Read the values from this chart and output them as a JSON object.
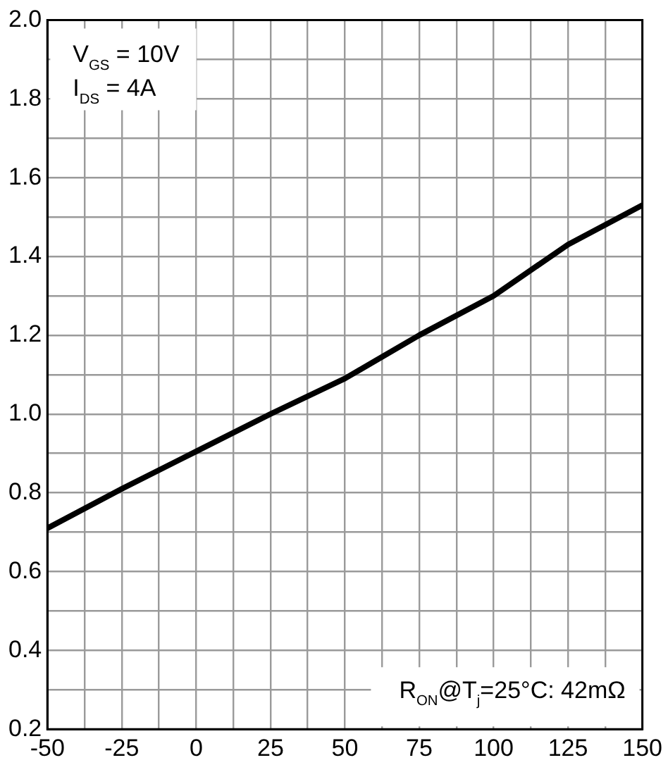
{
  "chart_data": {
    "type": "line",
    "x": [
      -50,
      -25,
      0,
      25,
      50,
      75,
      100,
      125,
      150
    ],
    "series": [
      {
        "color": "#000000",
        "values": [
          0.71,
          0.81,
          0.905,
          1.0,
          1.09,
          1.2,
          1.3,
          1.43,
          1.53
        ]
      }
    ],
    "xlim": [
      -50,
      150
    ],
    "xticks": [
      -50,
      {
        "value": -37.5,
        "label": null
      },
      -25,
      {
        "value": -12.5,
        "label": null
      },
      0,
      {
        "value": 12.5,
        "label": null
      },
      25,
      {
        "value": 37.5,
        "label": null
      },
      50,
      {
        "value": 62.5,
        "label": null
      },
      75,
      {
        "value": 87.5,
        "label": null
      },
      100,
      {
        "value": 112.5,
        "label": null
      },
      125,
      {
        "value": 137.5,
        "label": null
      },
      150
    ],
    "ylim": [
      0.2,
      2.0
    ],
    "yticks": [
      {
        "value": 0.2,
        "label": "0.2"
      },
      {
        "value": 0.3,
        "label": null
      },
      {
        "value": 0.4,
        "label": "0.4"
      },
      {
        "value": 0.5,
        "label": null
      },
      {
        "value": 0.6,
        "label": "0.6"
      },
      {
        "value": 0.7,
        "label": null
      },
      {
        "value": 0.8,
        "label": "0.8"
      },
      {
        "value": 0.9,
        "label": null
      },
      {
        "value": 1.0,
        "label": "1.0"
      },
      {
        "value": 1.1,
        "label": null
      },
      {
        "value": 1.2,
        "label": "1.2"
      },
      {
        "value": 1.3,
        "label": null
      },
      {
        "value": 1.4,
        "label": "1.4"
      },
      {
        "value": 1.5,
        "label": null
      },
      {
        "value": 1.6,
        "label": "1.6"
      },
      {
        "value": 1.7,
        "label": null
      },
      {
        "value": 1.8,
        "label": "1.8"
      },
      {
        "value": 1.9,
        "label": null
      },
      {
        "value": 2.0,
        "label": "2.0"
      }
    ],
    "grid": true,
    "marker": "none",
    "line_style": "solid",
    "legend": false,
    "annotations": [
      "V$_{GS}$ = 10V",
      "I$_{DS}$ = 4A",
      "R$_{ON}$@T$_{j}$=25°C: 42mΩ"
    ]
  }
}
